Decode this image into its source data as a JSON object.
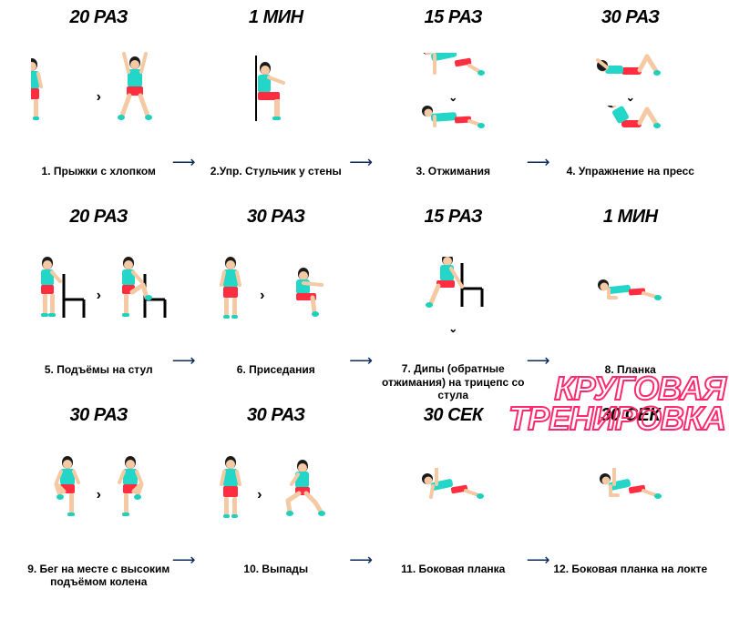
{
  "infographic": {
    "type": "infographic",
    "title": "КРУГОВАЯ\nТРЕНИРОВКА",
    "title_color": "#ff2a6d",
    "title_stroke": "#ff2a6d",
    "title_fontsize": 36,
    "background_color": "#ffffff",
    "arrow_color": "#0a2a5a",
    "grid": {
      "cols": 4,
      "rows": 3
    },
    "palette": {
      "skin": "#f5c9a3",
      "hair": "#1a1a1a",
      "shirt": "#23d6c8",
      "shorts": "#ff2d3f",
      "shoe": "#1fd1bd",
      "chair": "#000000",
      "wall": "#000000",
      "reps_text": "#000000",
      "caption_text": "#000000"
    },
    "exercises": [
      {
        "id": 1,
        "reps": "20 РАЗ",
        "name": "1. Прыжки с хлопком",
        "pose": "jumping-jacks",
        "arrow_after": true
      },
      {
        "id": 2,
        "reps": "1 МИН",
        "name": "2.Упр.  Стульчик у стены",
        "pose": "wall-sit",
        "arrow_after": true
      },
      {
        "id": 3,
        "reps": "15 РАЗ",
        "name": "3. Отжимания",
        "pose": "pushups",
        "arrow_after": true
      },
      {
        "id": 4,
        "reps": "30 РАЗ",
        "name": "4.  Упражнение на пресс",
        "pose": "crunches",
        "arrow_after": false
      },
      {
        "id": 5,
        "reps": "20 РАЗ",
        "name": "5. Подъёмы на стул",
        "pose": "stepups",
        "arrow_after": true
      },
      {
        "id": 6,
        "reps": "30 РАЗ",
        "name": "6. Приседания",
        "pose": "squats",
        "arrow_after": true
      },
      {
        "id": 7,
        "reps": "15 РАЗ",
        "name": "7. Дипы (обратные отжимания) на трицепс со стула",
        "pose": "dips",
        "arrow_after": true
      },
      {
        "id": 8,
        "reps": "1 МИН",
        "name": "8.  Планка",
        "pose": "plank",
        "arrow_after": false
      },
      {
        "id": 9,
        "reps": "30 РАЗ",
        "name": "9. Бег на месте с высоким подъёмом колена",
        "pose": "high-knees",
        "arrow_after": true
      },
      {
        "id": 10,
        "reps": "30 РАЗ",
        "name": "10. Выпады",
        "pose": "lunges",
        "arrow_after": true
      },
      {
        "id": 11,
        "reps": "30 СЕК",
        "name": "11.    Боковая планка",
        "pose": "side-plank",
        "arrow_after": true
      },
      {
        "id": 12,
        "reps": "30 СЕК",
        "name": "12. Боковая планка на локте",
        "pose": "side-plank-elbow",
        "arrow_after": false
      }
    ]
  }
}
